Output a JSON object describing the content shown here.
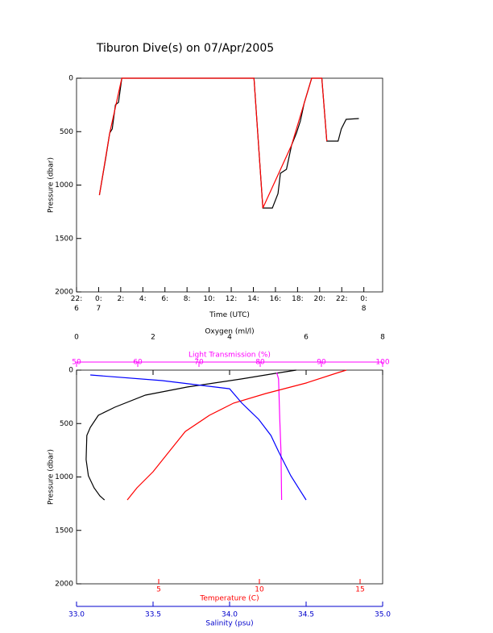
{
  "chart_data": [
    {
      "type": "line",
      "title": "Tiburon Dive(s) on 07/Apr/2005",
      "xlabel": "Time (UTC)",
      "ylabel": "Pressure (dbar)",
      "xlim": [
        -2,
        25.7
      ],
      "xticks": [
        {
          "value": -2,
          "label": "22:\n6"
        },
        {
          "value": 0,
          "label": "0:\n7"
        },
        {
          "value": 2,
          "label": "2:"
        },
        {
          "value": 4,
          "label": "4:"
        },
        {
          "value": 6,
          "label": "6:"
        },
        {
          "value": 8,
          "label": "8:"
        },
        {
          "value": 10,
          "label": "10:"
        },
        {
          "value": 12,
          "label": "12:"
        },
        {
          "value": 14,
          "label": "14:"
        },
        {
          "value": 16,
          "label": "16:"
        },
        {
          "value": 18,
          "label": "18:"
        },
        {
          "value": 20,
          "label": "20:"
        },
        {
          "value": 22,
          "label": "22:"
        },
        {
          "value": 24,
          "label": "0:\n8"
        }
      ],
      "ylim": [
        0,
        2000
      ],
      "yinverted": true,
      "yticks": [
        0,
        500,
        1000,
        1500,
        2000
      ],
      "series": [
        {
          "color": "#000000",
          "x": [
            0.07,
            0.65,
            1.0,
            1.23,
            1.52,
            1.8,
            2.1,
            14.06,
            14.86,
            15.72,
            16.23,
            16.45,
            17.0,
            17.46,
            17.9,
            18.26,
            18.6,
            19.28,
            20.2,
            20.65,
            21.67,
            21.96,
            22.4,
            23.55
          ],
          "values": [
            1094,
            740,
            513,
            475,
            250,
            226,
            0,
            0,
            1215,
            1215,
            1080,
            890,
            853,
            626,
            513,
            400,
            234,
            0,
            0,
            589,
            589,
            475,
            385,
            377
          ]
        },
        {
          "color": "#ff0000",
          "x": [
            0.07,
            1.0,
            2.1,
            14.06,
            14.86,
            17.46,
            19.28,
            20.2,
            20.65
          ],
          "values": [
            1094,
            513,
            0,
            0,
            1215,
            626,
            0,
            0,
            589
          ]
        }
      ]
    },
    {
      "type": "profile",
      "ylabel": "Pressure (dbar)",
      "ylim": [
        0,
        2000
      ],
      "yinverted": true,
      "yticks": [
        0,
        500,
        1000,
        1500,
        2000
      ],
      "axes": [
        {
          "label": "Oxygen (ml/l)",
          "color": "#000000",
          "position": "top",
          "lim": [
            0,
            8
          ],
          "ticks": [
            0,
            2,
            4,
            6,
            8
          ]
        },
        {
          "label": "Light Transmission (%)",
          "color": "#ff00ff",
          "position": "top",
          "lim": [
            50,
            100
          ],
          "ticks": [
            50,
            60,
            70,
            80,
            90,
            100
          ]
        },
        {
          "label": "Temperature (C)",
          "color": "#ff0000",
          "position": "bottom",
          "lim": [
            0.92,
            16.12
          ],
          "ticks": [
            5,
            10,
            15
          ]
        },
        {
          "label": "Salinity (psu)",
          "color": "#0000cc",
          "position": "bottom",
          "lim": [
            33,
            35
          ],
          "ticks": [
            {
              "value": 33,
              "label": "33.0"
            },
            {
              "value": 33.5,
              "label": "33.5"
            },
            {
              "value": 34,
              "label": "34.0"
            },
            {
              "value": 34.5,
              "label": "34.5"
            },
            {
              "value": 35,
              "label": "35.0"
            }
          ]
        }
      ],
      "series": [
        {
          "axis": 0,
          "color": "#000000",
          "x": [
            5.74,
            5.2,
            4.3,
            2.9,
            1.8,
            1.0,
            0.57,
            0.36,
            0.27,
            0.25,
            0.31,
            0.46,
            0.61,
            0.73
          ],
          "values": [
            0,
            30,
            83,
            158,
            234,
            347,
            423,
            536,
            611,
            838,
            989,
            1102,
            1177,
            1215
          ]
        },
        {
          "axis": 1,
          "color": "#ff00ff",
          "x": [
            82.7,
            83.0,
            83.2,
            83.4,
            83.5
          ],
          "values": [
            23,
            83,
            460,
            762,
            1215
          ]
        },
        {
          "axis": 2,
          "color": "#ff0000",
          "x": [
            14.32,
            13.92,
            12.32,
            10.32,
            8.72,
            7.52,
            6.32,
            5.52,
            4.72,
            3.92,
            3.44
          ],
          "values": [
            0,
            23,
            121,
            219,
            309,
            423,
            574,
            762,
            951,
            1102,
            1215
          ]
        },
        {
          "axis": 3,
          "color": "#0000ff",
          "x": [
            33.09,
            33.56,
            34.0,
            34.08,
            34.19,
            34.27,
            34.32,
            34.4,
            34.46,
            34.5
          ],
          "values": [
            45,
            98,
            174,
            309,
            460,
            611,
            762,
            989,
            1125,
            1215
          ]
        }
      ]
    }
  ]
}
